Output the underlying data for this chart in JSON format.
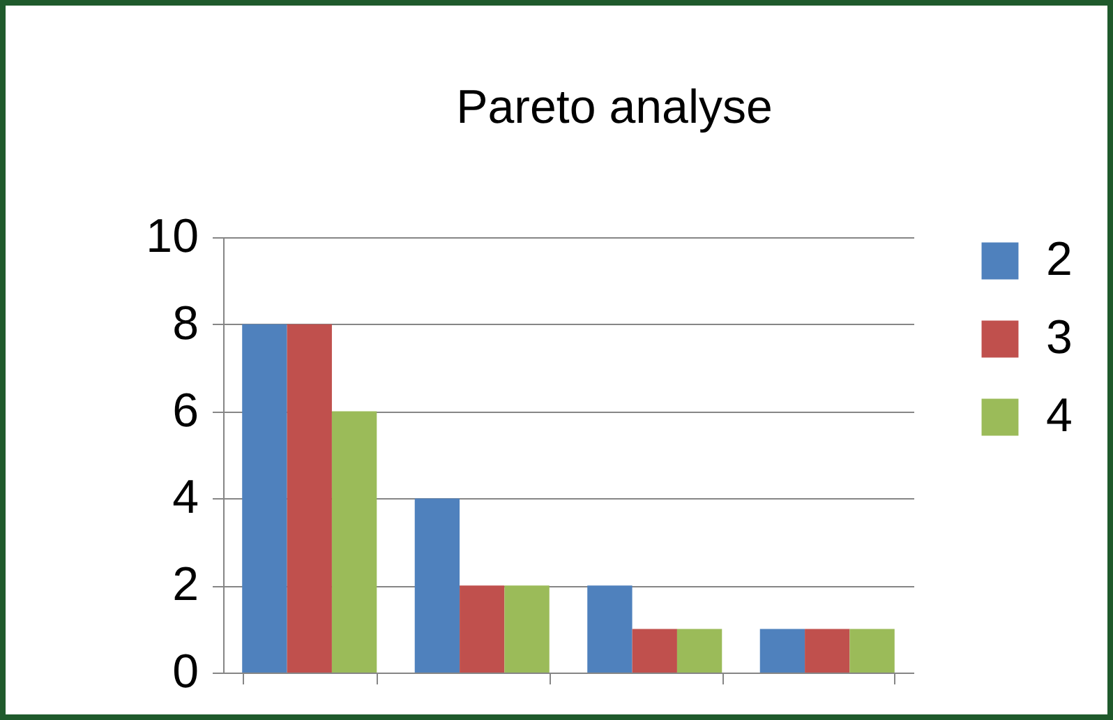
{
  "chart_data": {
    "type": "bar",
    "title": "Pareto analyse",
    "categories": [
      null,
      null,
      null,
      null
    ],
    "series": [
      {
        "name": "2",
        "color": "#4f81bd",
        "values": [
          8,
          4,
          2,
          1
        ]
      },
      {
        "name": "3",
        "color": "#c0504d",
        "values": [
          8,
          2,
          1,
          1
        ]
      },
      {
        "name": "4",
        "color": "#9bbb59",
        "values": [
          6,
          2,
          1,
          1
        ]
      }
    ],
    "ylim": [
      0,
      10
    ],
    "yticks": [
      0,
      2,
      4,
      6,
      8,
      10
    ],
    "grid": "y",
    "legend": "right"
  }
}
